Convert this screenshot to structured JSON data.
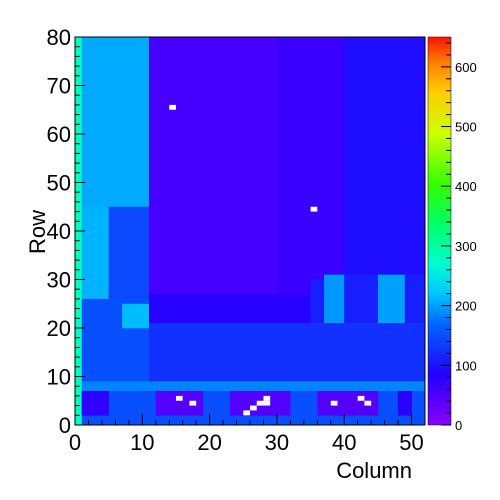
{
  "chart_data": {
    "type": "heatmap",
    "xlabel": "Column",
    "ylabel": "Row",
    "xlim": [
      0,
      52
    ],
    "ylim": [
      0,
      80
    ],
    "x_ticks": [
      "0",
      "10",
      "20",
      "30",
      "40",
      "50"
    ],
    "y_ticks": [
      "0",
      "10",
      "20",
      "30",
      "40",
      "50",
      "60",
      "70",
      "80"
    ],
    "colorbar": {
      "range": [
        0,
        650
      ],
      "ticks": [
        "0",
        "100",
        "200",
        "300",
        "400",
        "500",
        "600"
      ]
    },
    "regions": [
      {
        "x0": 0,
        "x1": 1,
        "y0": 0,
        "y1": 80,
        "value": 280
      },
      {
        "x0": 1,
        "x1": 11,
        "y0": 45,
        "y1": 80,
        "value": 205
      },
      {
        "x0": 1,
        "x1": 5,
        "y0": 26,
        "y1": 45,
        "value": 210
      },
      {
        "x0": 5,
        "x1": 11,
        "y0": 26,
        "y1": 45,
        "value": 145
      },
      {
        "x0": 1,
        "x1": 11,
        "y0": 9,
        "y1": 26,
        "value": 150
      },
      {
        "x0": 7,
        "x1": 11,
        "y0": 20,
        "y1": 25,
        "value": 215
      },
      {
        "x0": 11,
        "x1": 30,
        "y0": 27,
        "y1": 80,
        "value": 55
      },
      {
        "x0": 30,
        "x1": 40,
        "y0": 27,
        "y1": 80,
        "value": 65
      },
      {
        "x0": 40,
        "x1": 52,
        "y0": 30,
        "y1": 80,
        "value": 95
      },
      {
        "x0": 11,
        "x1": 35,
        "y0": 21,
        "y1": 27,
        "value": 80
      },
      {
        "x0": 35,
        "x1": 37,
        "y0": 21,
        "y1": 30,
        "value": 110
      },
      {
        "x0": 37,
        "x1": 40,
        "y0": 21,
        "y1": 31,
        "value": 195
      },
      {
        "x0": 40,
        "x1": 45,
        "y0": 21,
        "y1": 31,
        "value": 110
      },
      {
        "x0": 45,
        "x1": 49,
        "y0": 21,
        "y1": 31,
        "value": 200
      },
      {
        "x0": 49,
        "x1": 52,
        "y0": 21,
        "y1": 31,
        "value": 110
      },
      {
        "x0": 11,
        "x1": 52,
        "y0": 9,
        "y1": 21,
        "value": 125
      },
      {
        "x0": 1,
        "x1": 52,
        "y0": 7,
        "y1": 9,
        "value": 185
      },
      {
        "x0": 1,
        "x1": 52,
        "y0": 0,
        "y1": 7,
        "value": 150
      },
      {
        "x0": 1,
        "x1": 5,
        "y0": 2,
        "y1": 7,
        "value": 75
      },
      {
        "x0": 12,
        "x1": 19,
        "y0": 2,
        "y1": 7,
        "value": 45
      },
      {
        "x0": 23,
        "x1": 32,
        "y0": 2,
        "y1": 7,
        "value": 45
      },
      {
        "x0": 36,
        "x1": 45,
        "y0": 2,
        "y1": 7,
        "value": 45
      },
      {
        "x0": 48,
        "x1": 50,
        "y0": 2,
        "y1": 7,
        "value": 80
      }
    ],
    "empty_cells": [
      [
        14,
        65
      ],
      [
        35,
        44
      ],
      [
        15,
        5
      ],
      [
        17,
        4
      ],
      [
        26,
        3
      ],
      [
        27,
        4
      ],
      [
        28,
        4
      ],
      [
        28,
        5
      ],
      [
        25,
        2
      ],
      [
        38,
        4
      ],
      [
        42,
        5
      ],
      [
        43,
        4
      ]
    ]
  }
}
